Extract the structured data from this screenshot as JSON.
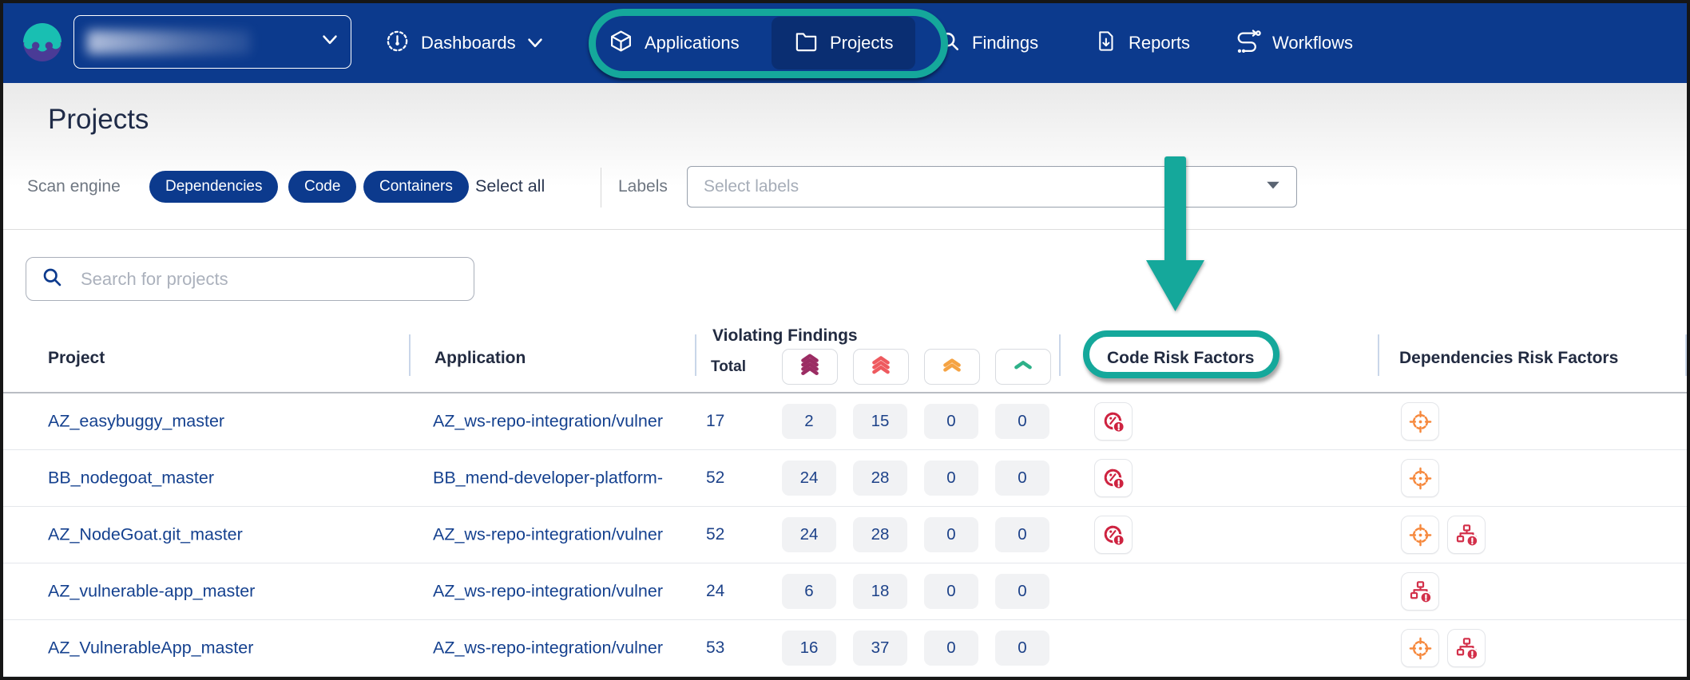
{
  "nav": {
    "account_selector": {
      "value": "",
      "blurred": true
    },
    "items": [
      {
        "label": "Dashboards"
      },
      {
        "label": "Applications"
      },
      {
        "label": "Projects",
        "selected": true
      },
      {
        "label": "Findings"
      },
      {
        "label": "Reports"
      },
      {
        "label": "Workflows"
      }
    ]
  },
  "page": {
    "title": "Projects"
  },
  "filters": {
    "scan_engine_label": "Scan engine",
    "chips": [
      "Dependencies",
      "Code",
      "Containers"
    ],
    "select_all_label": "Select all",
    "labels_label": "Labels",
    "labels_placeholder": "Select labels"
  },
  "search": {
    "placeholder": "Search for projects"
  },
  "table": {
    "columns": {
      "project": "Project",
      "application": "Application",
      "violating_findings": "Violating Findings",
      "total": "Total",
      "code_risk": "Code Risk Factors",
      "deps_risk": "Dependencies Risk Factors"
    },
    "severity_levels": [
      {
        "name": "critical",
        "color": "#9B2C63",
        "chevrons": 4
      },
      {
        "name": "high",
        "color": "#EE5A5F",
        "chevrons": 3
      },
      {
        "name": "medium",
        "color": "#F5A343",
        "chevrons": 2
      },
      {
        "name": "low",
        "color": "#2EB189",
        "chevrons": 1
      }
    ],
    "rows": [
      {
        "project": "AZ_easybuggy_master",
        "application": "AZ_ws-repo-integration/vulner",
        "total": "17",
        "severities": [
          "2",
          "15",
          "0",
          "0"
        ],
        "code_risk_factors": [
          "code-vulnerability"
        ],
        "dependencies_risk_factors": [
          "reachable-target"
        ]
      },
      {
        "project": "BB_nodegoat_master",
        "application": "BB_mend-developer-platform-",
        "total": "52",
        "severities": [
          "24",
          "28",
          "0",
          "0"
        ],
        "code_risk_factors": [
          "code-vulnerability"
        ],
        "dependencies_risk_factors": [
          "reachable-target"
        ]
      },
      {
        "project": "AZ_NodeGoat.git_master",
        "application": "AZ_ws-repo-integration/vulner",
        "total": "52",
        "severities": [
          "24",
          "28",
          "0",
          "0"
        ],
        "code_risk_factors": [
          "code-vulnerability"
        ],
        "dependencies_risk_factors": [
          "reachable-target",
          "vulnerable-dependency-tree"
        ]
      },
      {
        "project": "AZ_vulnerable-app_master",
        "application": "AZ_ws-repo-integration/vulner",
        "total": "24",
        "severities": [
          "6",
          "18",
          "0",
          "0"
        ],
        "code_risk_factors": [],
        "dependencies_risk_factors": [
          "vulnerable-dependency-tree"
        ]
      },
      {
        "project": "AZ_VulnerableApp_master",
        "application": "AZ_ws-repo-integration/vulner",
        "total": "53",
        "severities": [
          "16",
          "37",
          "0",
          "0"
        ],
        "code_risk_factors": [],
        "dependencies_risk_factors": [
          "reachable-target",
          "vulnerable-dependency-tree"
        ]
      }
    ]
  },
  "annotations": {
    "color": "#15A89B",
    "nav_ring_around": "Applications, Projects",
    "arrow_points_to": "Code Risk Factors",
    "header_ring_around": "Code Risk Factors"
  },
  "colors": {
    "navbar": "#0C3A8D",
    "nav_selected": "#0A2E72",
    "link": "#15418F",
    "count_text": "#1D4289",
    "count_bg": "#F1F2F4",
    "code_risk_icon": "#CE2340",
    "reachability_icon": "#F6883C",
    "dependency_tree_icon": "#D3304A"
  }
}
